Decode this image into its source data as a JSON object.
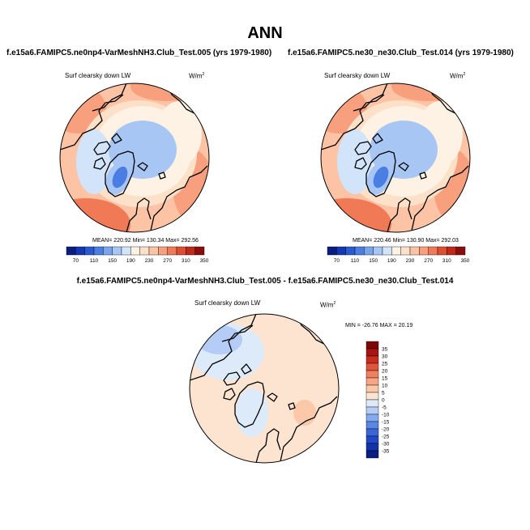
{
  "figure": {
    "title": "ANN",
    "diff_title": "f.e15a6.FAMIPC5.ne0np4-VarMeshNH3.Club_Test.005 - f.e15a6.FAMIPC5.ne30_ne30.Club_Test.014"
  },
  "panels": [
    {
      "title": "f.e15a6.FAMIPC5.ne0np4-VarMeshNH3.Club_Test.005 (yrs 1979-1980)",
      "variable": "Surf clearsky down LW",
      "units_base": "W/m",
      "units_exp": "2",
      "stats": "MEAN= 220.92  Min= 130.34  Max= 292.56"
    },
    {
      "title": "f.e15a6.FAMIPC5.ne30_ne30.Club_Test.014 (yrs 1979-1980)",
      "variable": "Surf clearsky down LW",
      "units_base": "W/m",
      "units_exp": "2",
      "stats": "MEAN= 220.46  Min= 130.90  Max= 292.03"
    },
    {
      "variable": "Surf clearsky down LW",
      "units_base": "W/m",
      "units_exp": "2",
      "stats": "MIN = -26.76 MAX =  20.19"
    }
  ],
  "colors": {
    "field_ramp": [
      "#0a1e82",
      "#1438b4",
      "#2a5ad2",
      "#4a7ee2",
      "#7aa4ec",
      "#a8c6f4",
      "#d2e4fa",
      "#fdf2e4",
      "#fde0c8",
      "#fcc3a4",
      "#f8a07e",
      "#f07a56",
      "#e04e32",
      "#c02818",
      "#8c0c0c"
    ],
    "diff_ramp": [
      "#0a1e82",
      "#1432aa",
      "#2248c8",
      "#3a66d8",
      "#5a86e4",
      "#86aaee",
      "#b4ccf6",
      "#dceaf9",
      "#fde4d0",
      "#fbc8aa",
      "#f7a684",
      "#ef8060",
      "#e0543a",
      "#c82c1c",
      "#a81410",
      "#7c0806"
    ],
    "land_outline": "#000000"
  },
  "chart_data": [
    {
      "type": "heatmap",
      "projection": "north-polar-stereographic",
      "title": "f.e15a6.FAMIPC5.ne0np4-VarMeshNH3.Club_Test.005 (yrs 1979-1980)",
      "variable": "Surf clearsky down LW",
      "units": "W/m2",
      "mean": 220.92,
      "min": 130.34,
      "max": 292.56,
      "colorbar_levels": [
        70,
        110,
        150,
        190,
        230,
        270,
        310,
        350
      ],
      "regional_values": {
        "arctic_center": 175,
        "greenland": 135,
        "north_atlantic": 285,
        "north_pacific": 275,
        "siberia": 205,
        "canada": 195,
        "periphery": 255
      }
    },
    {
      "type": "heatmap",
      "projection": "north-polar-stereographic",
      "title": "f.e15a6.FAMIPC5.ne30_ne30.Club_Test.014 (yrs 1979-1980)",
      "variable": "Surf clearsky down LW",
      "units": "W/m2",
      "mean": 220.46,
      "min": 130.9,
      "max": 292.03,
      "colorbar_levels": [
        70,
        110,
        150,
        190,
        230,
        270,
        310,
        350
      ],
      "regional_values": {
        "arctic_center": 175,
        "greenland": 136,
        "north_atlantic": 285,
        "north_pacific": 275,
        "siberia": 205,
        "canada": 195,
        "periphery": 255
      }
    },
    {
      "type": "heatmap",
      "projection": "north-polar-stereographic",
      "title": "f.e15a6.FAMIPC5.ne0np4-VarMeshNH3.Club_Test.005 - f.e15a6.FAMIPC5.ne30_ne30.Club_Test.014",
      "variable": "Surf clearsky down LW",
      "units": "W/m2",
      "min": -26.76,
      "max": 20.19,
      "colorbar_levels": [
        35,
        30,
        25,
        20,
        15,
        10,
        5,
        0,
        -5,
        -10,
        -15,
        -20,
        -25,
        -30,
        -35
      ],
      "regional_values": {
        "north_atlantic": -8,
        "arctic_center": 1,
        "north_pacific": 7,
        "europe": 3,
        "canada": 4
      }
    }
  ]
}
